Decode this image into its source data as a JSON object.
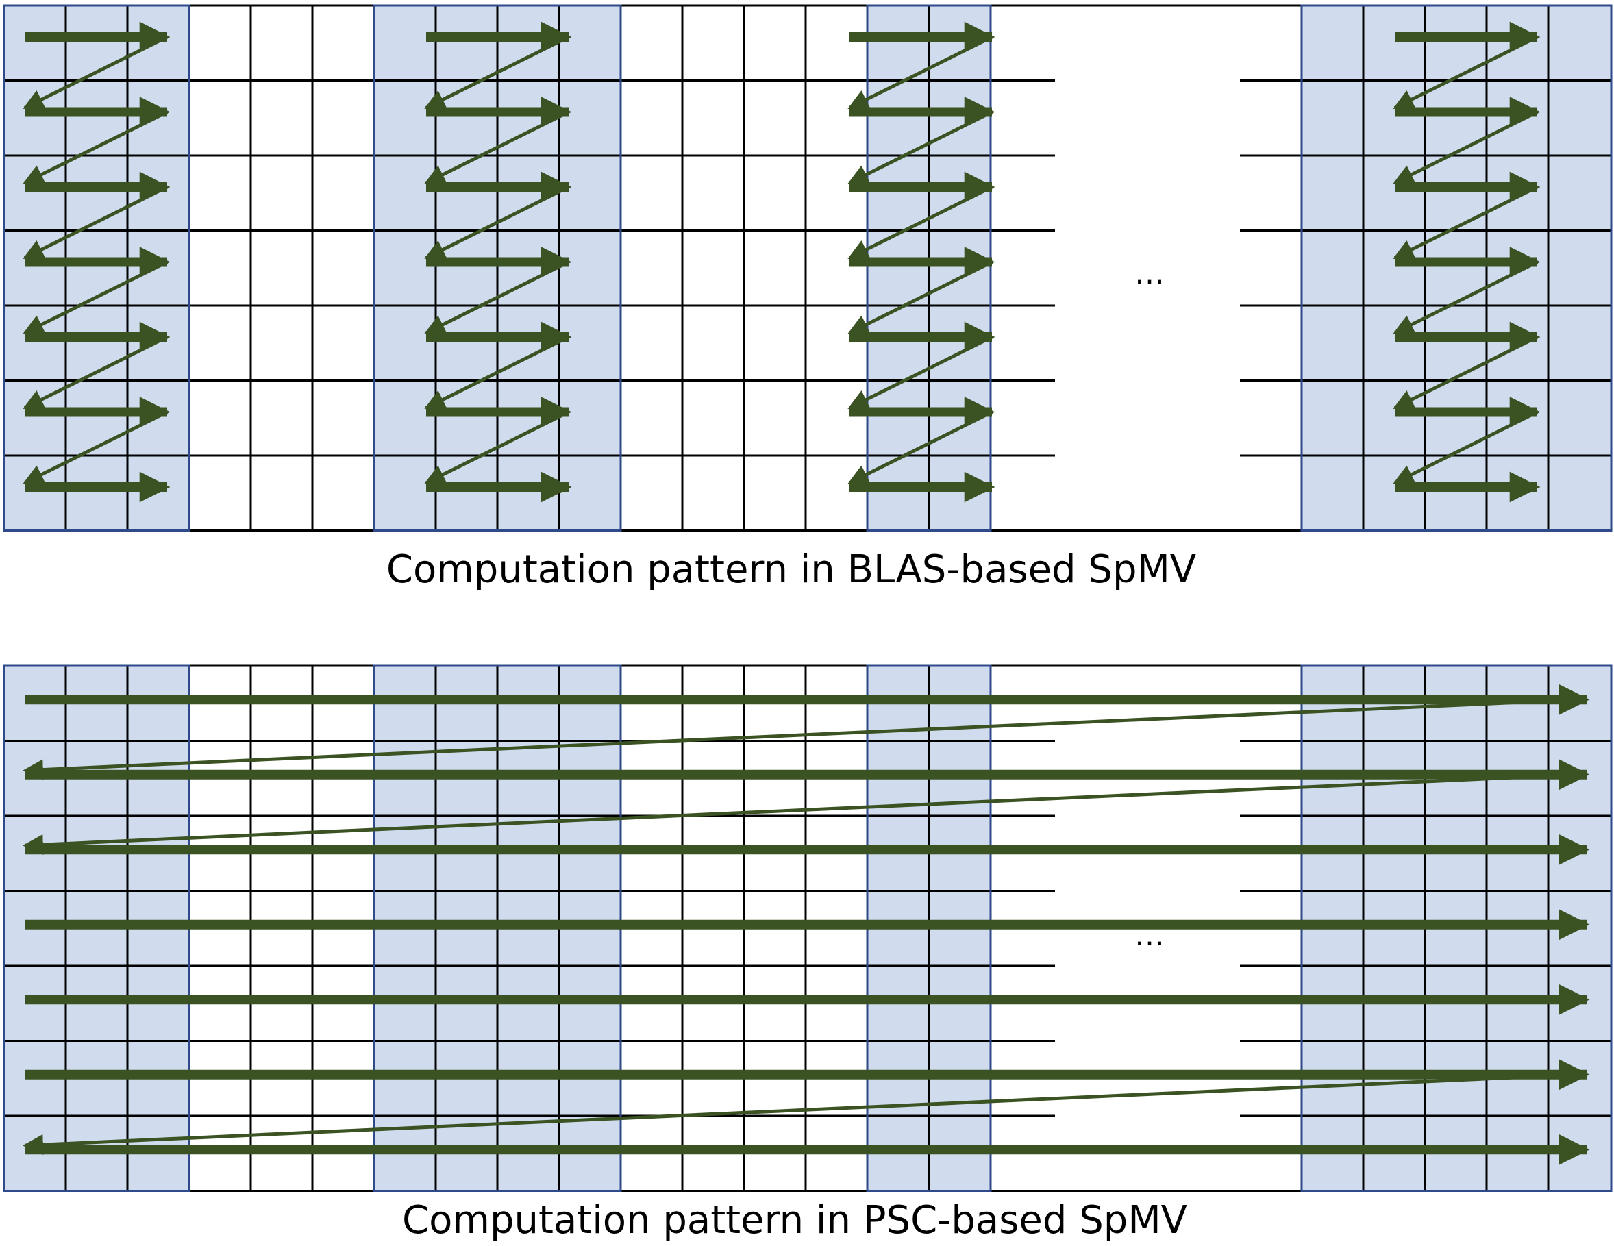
{
  "colors": {
    "block_fill": "#d0dcee",
    "block_border": "#2f4a8a",
    "grid_line": "#000000",
    "arrow": "#3b5323",
    "background": "#ffffff"
  },
  "panels": [
    {
      "id": "blas",
      "caption": "Computation pattern in BLAS-based SpMV",
      "ellipsis": "…",
      "rows": 7,
      "pattern": "zigzag-within-block"
    },
    {
      "id": "psc",
      "caption": "Computation pattern in PSC-based SpMV",
      "ellipsis": "…",
      "rows": 7,
      "pattern": "full-row-sweep"
    }
  ]
}
